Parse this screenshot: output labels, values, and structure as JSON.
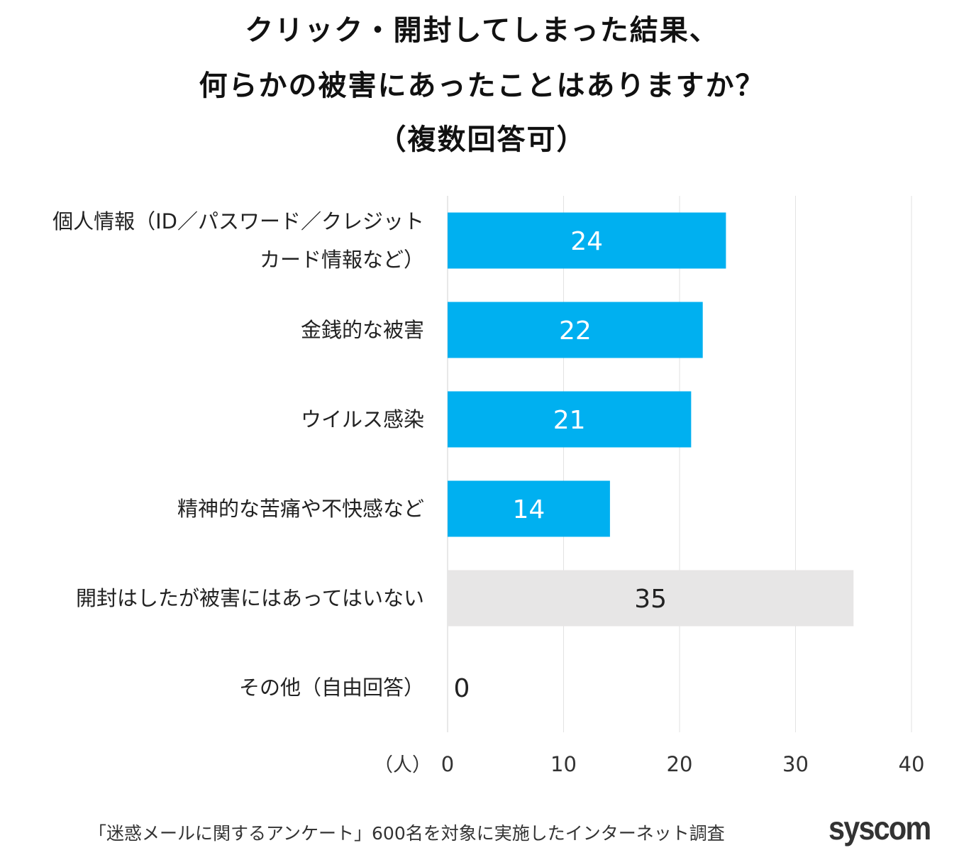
{
  "chart_data": {
    "type": "bar",
    "orientation": "horizontal",
    "title_lines": [
      "クリック・開封してしまった結果、",
      "何らかの被害にあったことはありますか？",
      "（複数回答可）"
    ],
    "categories": [
      [
        "個人情報（ID／パスワード／クレジット",
        "カード情報など）"
      ],
      [
        "金銭的な被害"
      ],
      [
        "ウイルス感染"
      ],
      [
        "精神的な苦痛や不快感など"
      ],
      [
        "開封はしたが被害にはあってはいない"
      ],
      [
        "その他（自由回答）"
      ]
    ],
    "values": [
      24,
      22,
      21,
      14,
      35,
      0
    ],
    "bar_colors": [
      "#00b0f0",
      "#00b0f0",
      "#00b0f0",
      "#00b0f0",
      "#e7e6e6",
      "#00b0f0"
    ],
    "xlabel": "（人）",
    "xlim": [
      0,
      40
    ],
    "xticks": [
      "0",
      "10",
      "20",
      "30",
      "40"
    ],
    "grid": "vertical",
    "data_labels": true
  },
  "footer": {
    "source": "「迷惑メールに関するアンケート」600名を対象に実施したインターネット調査",
    "logo": "syscom"
  }
}
